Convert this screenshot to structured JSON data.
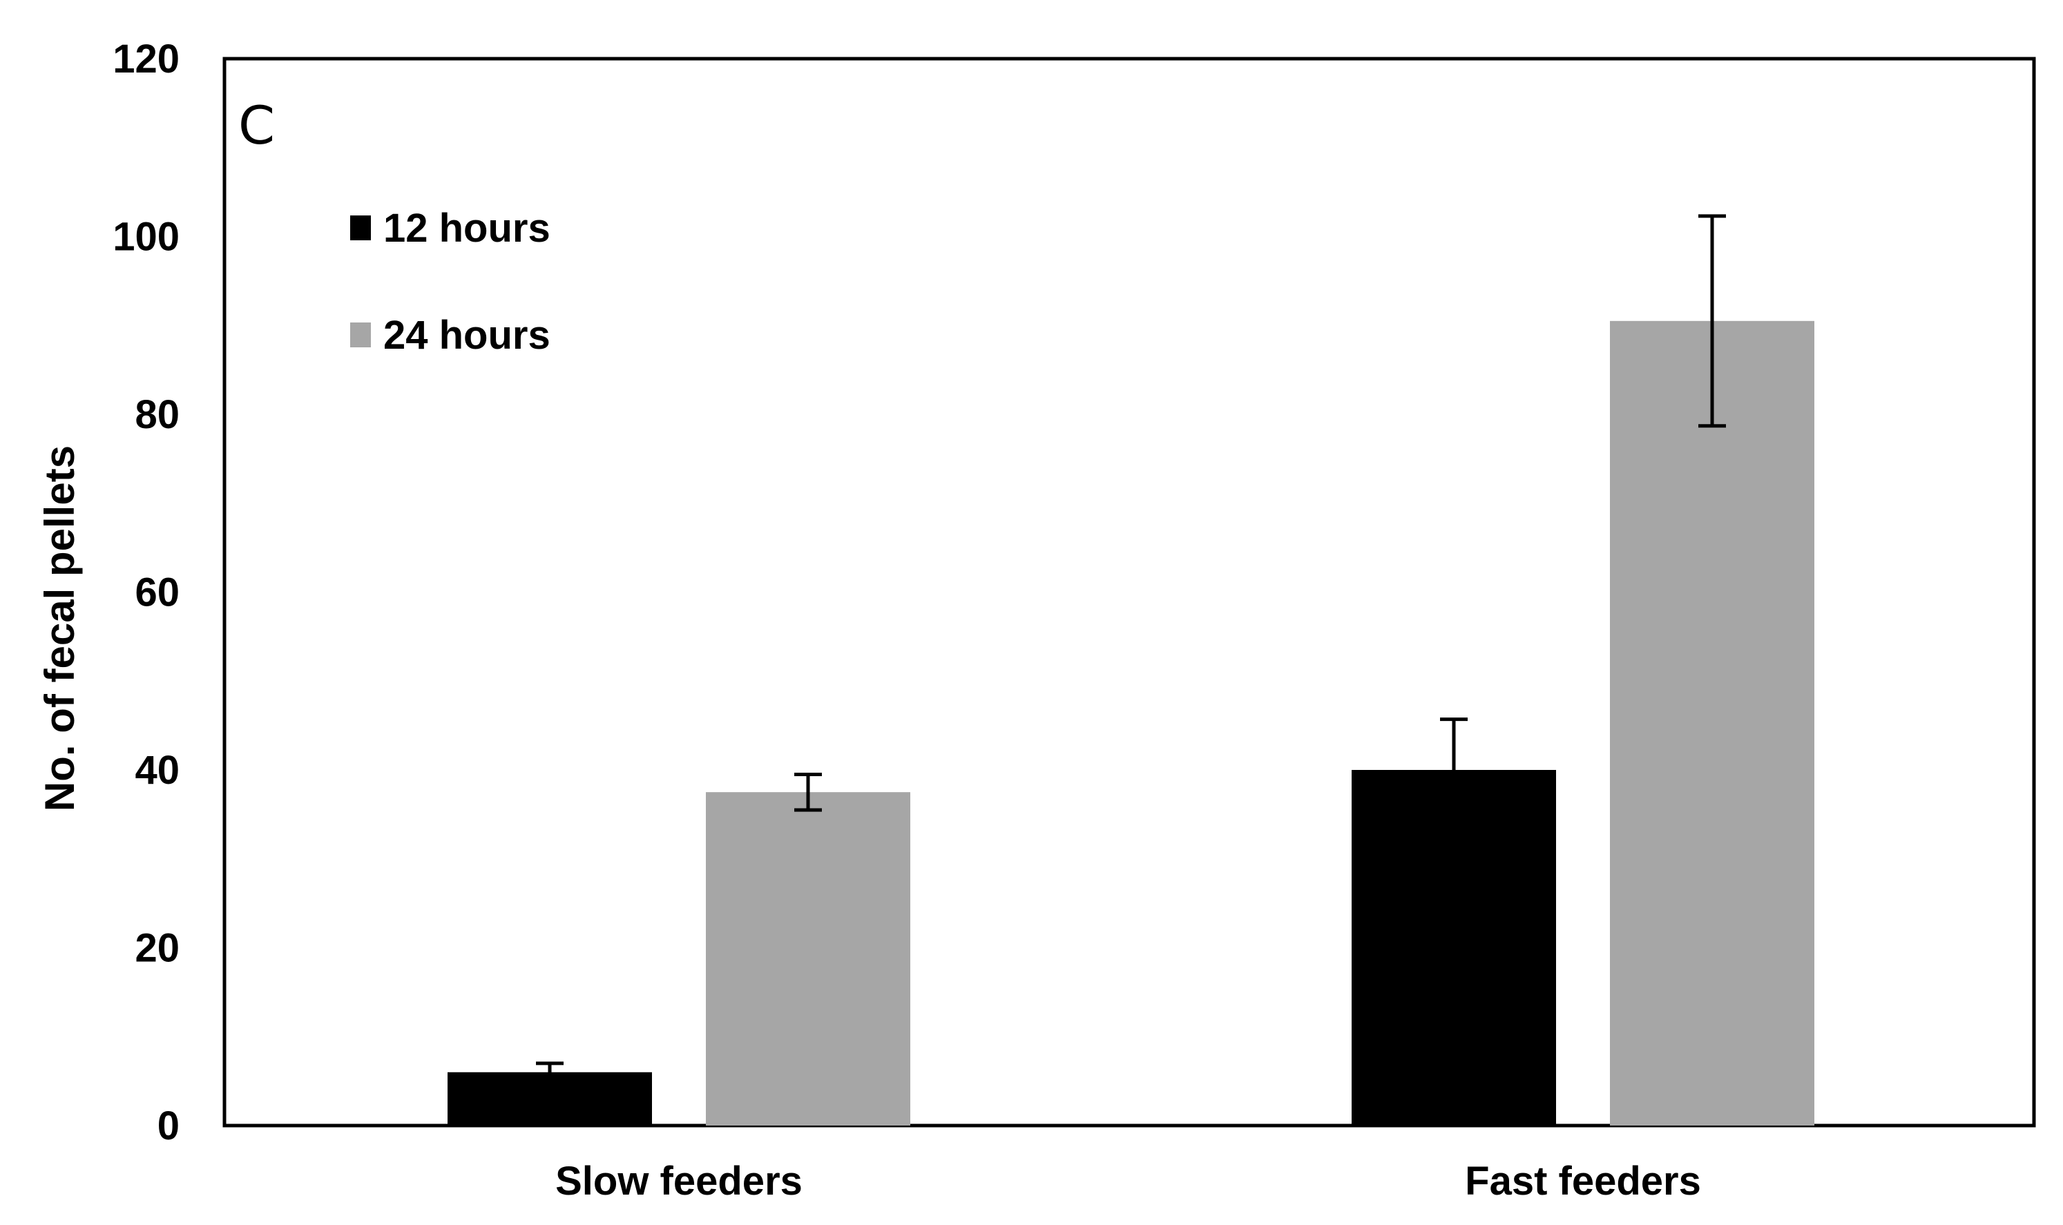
{
  "chart_data": {
    "type": "bar",
    "panel_label": "C",
    "title": "",
    "xlabel": "",
    "ylabel": "No. of fecal pellets",
    "ylim": [
      0,
      120
    ],
    "yticks": [
      0,
      20,
      40,
      60,
      80,
      100,
      120
    ],
    "grid": false,
    "legend_position": "top-left",
    "categories": [
      "Slow feeders",
      "Fast feeders"
    ],
    "series": [
      {
        "name": "12 hours",
        "color": "#000000",
        "values": [
          6,
          40
        ],
        "errors": [
          1,
          5.7
        ]
      },
      {
        "name": "24 hours",
        "color": "#a6a6a6",
        "values": [
          37.5,
          90.5
        ],
        "errors": [
          2,
          11.8
        ]
      }
    ]
  }
}
